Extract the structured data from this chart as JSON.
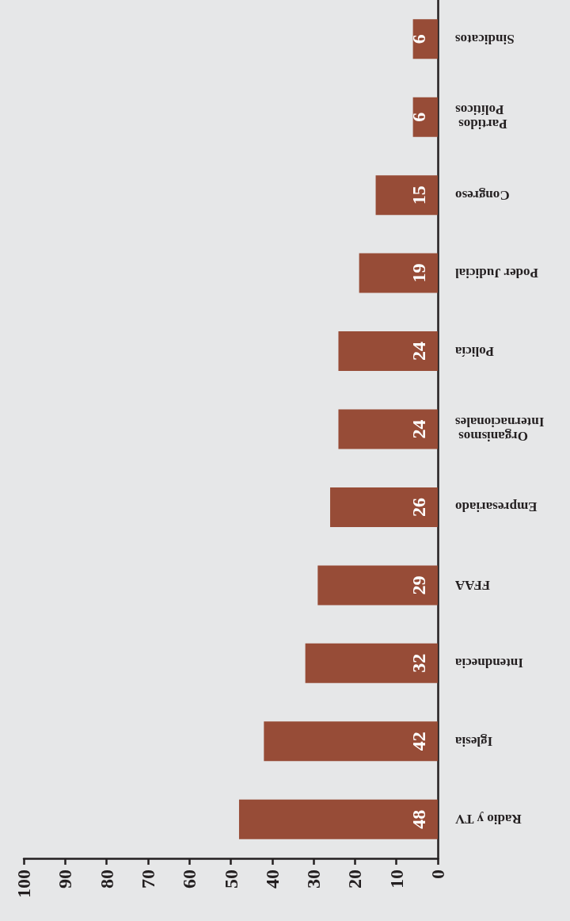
{
  "chart_data": {
    "type": "bar",
    "orientation": "horizontal",
    "categories": [
      "Sindicatos",
      "Partidos Políticos",
      "Congreso",
      "Poder Judicial",
      "Policía",
      "Organismos Internacionales",
      "Empresariado",
      "FFAA",
      "Intendnecia",
      "Iglesia",
      "Radio y TV"
    ],
    "values": [
      6,
      6,
      15,
      19,
      24,
      24,
      26,
      29,
      32,
      42,
      48
    ],
    "color": "#974c37",
    "xlim": [
      100,
      0
    ],
    "xticks": [
      0,
      10,
      20,
      30,
      40,
      50,
      60,
      70,
      80,
      90,
      100
    ],
    "data_labels": true
  }
}
